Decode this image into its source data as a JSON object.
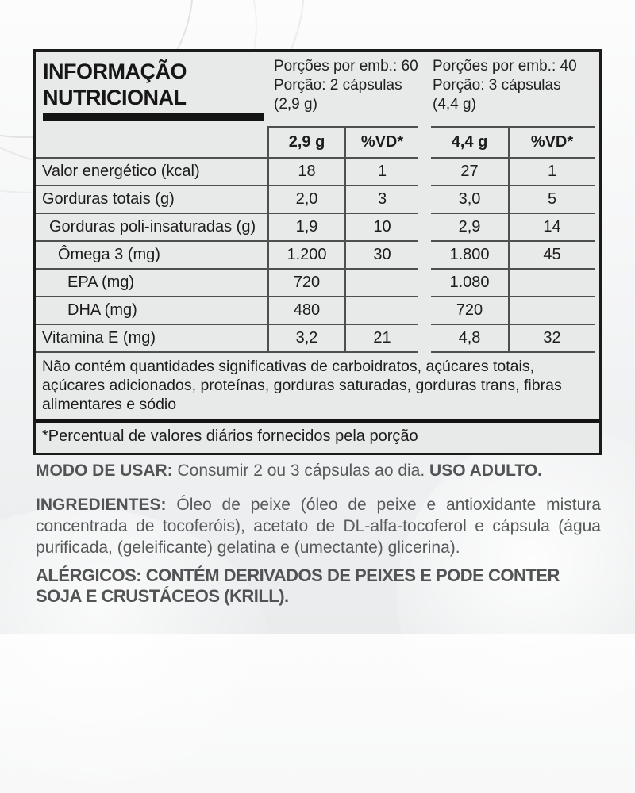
{
  "panel": {
    "title": "INFORMAÇÃO NUTRICIONAL",
    "servings": [
      {
        "line1": "Porções por emb.: 60",
        "line2": "Porção: 2 cápsulas",
        "line3": "(2,9 g)"
      },
      {
        "line1": "Porções por emb.: 40",
        "line2": "Porção: 3 cápsulas",
        "line3": "(4,4 g)"
      }
    ],
    "table": {
      "headers": {
        "qty1": "2,9 g",
        "vd1": "%VD*",
        "qty2": "4,4 g",
        "vd2": "%VD*"
      },
      "rows": [
        {
          "label": "Valor energético (kcal)",
          "v1": "18",
          "p1": "1",
          "v2": "27",
          "p2": "1"
        },
        {
          "label": "Gorduras totais (g)",
          "v1": "2,0",
          "p1": "3",
          "v2": "3,0",
          "p2": "5"
        },
        {
          "label": "Gorduras poli-insaturadas (g)",
          "v1": "1,9",
          "p1": "10",
          "v2": "2,9",
          "p2": "14"
        },
        {
          "label": "Ômega 3 (mg)",
          "v1": "1.200",
          "p1": "30",
          "v2": "1.800",
          "p2": "45"
        },
        {
          "label": "EPA (mg)",
          "v1": "720",
          "p1": "",
          "v2": "1.080",
          "p2": ""
        },
        {
          "label": "DHA (mg)",
          "v1": "480",
          "p1": "",
          "v2": "720",
          "p2": ""
        },
        {
          "label": "Vitamina E (mg)",
          "v1": "3,2",
          "p1": "21",
          "v2": "4,8",
          "p2": "32"
        }
      ]
    },
    "no_significant": "Não contém quantidades significativas de carboidratos, açúcares totais, açúcares adicionados, proteínas, gorduras saturadas, gorduras trans, fibras alimentares e sódio",
    "footnote": "*Percentual de valores diários fornecidos pela porção"
  },
  "usage": {
    "label": "MODO DE USAR:",
    "text": "Consumir 2 ou 3 cápsulas ao dia.",
    "suffix": "USO ADULTO."
  },
  "ingredients": {
    "label": "INGREDIENTES:",
    "text": "Óleo de peixe (óleo de peixe e antioxidante mistura concentrada de tocoferóis), acetato de DL-alfa-tocoferol e cápsula (água purificada, (geleificante) gelatina e (umectante) glicerina)."
  },
  "allergens": {
    "text": "ALÉRGICOS: CONTÉM DERIVADOS DE PEIXES E PODE CONTER SOJA E CRUSTÁCEOS (KRILL)."
  },
  "colors": {
    "panel_bg": "#e8e9e9",
    "panel_border": "#1b1b1b",
    "grid_line": "#4f4f4f",
    "text_dark": "#1c1c1c",
    "text_gray": "#58595a"
  }
}
